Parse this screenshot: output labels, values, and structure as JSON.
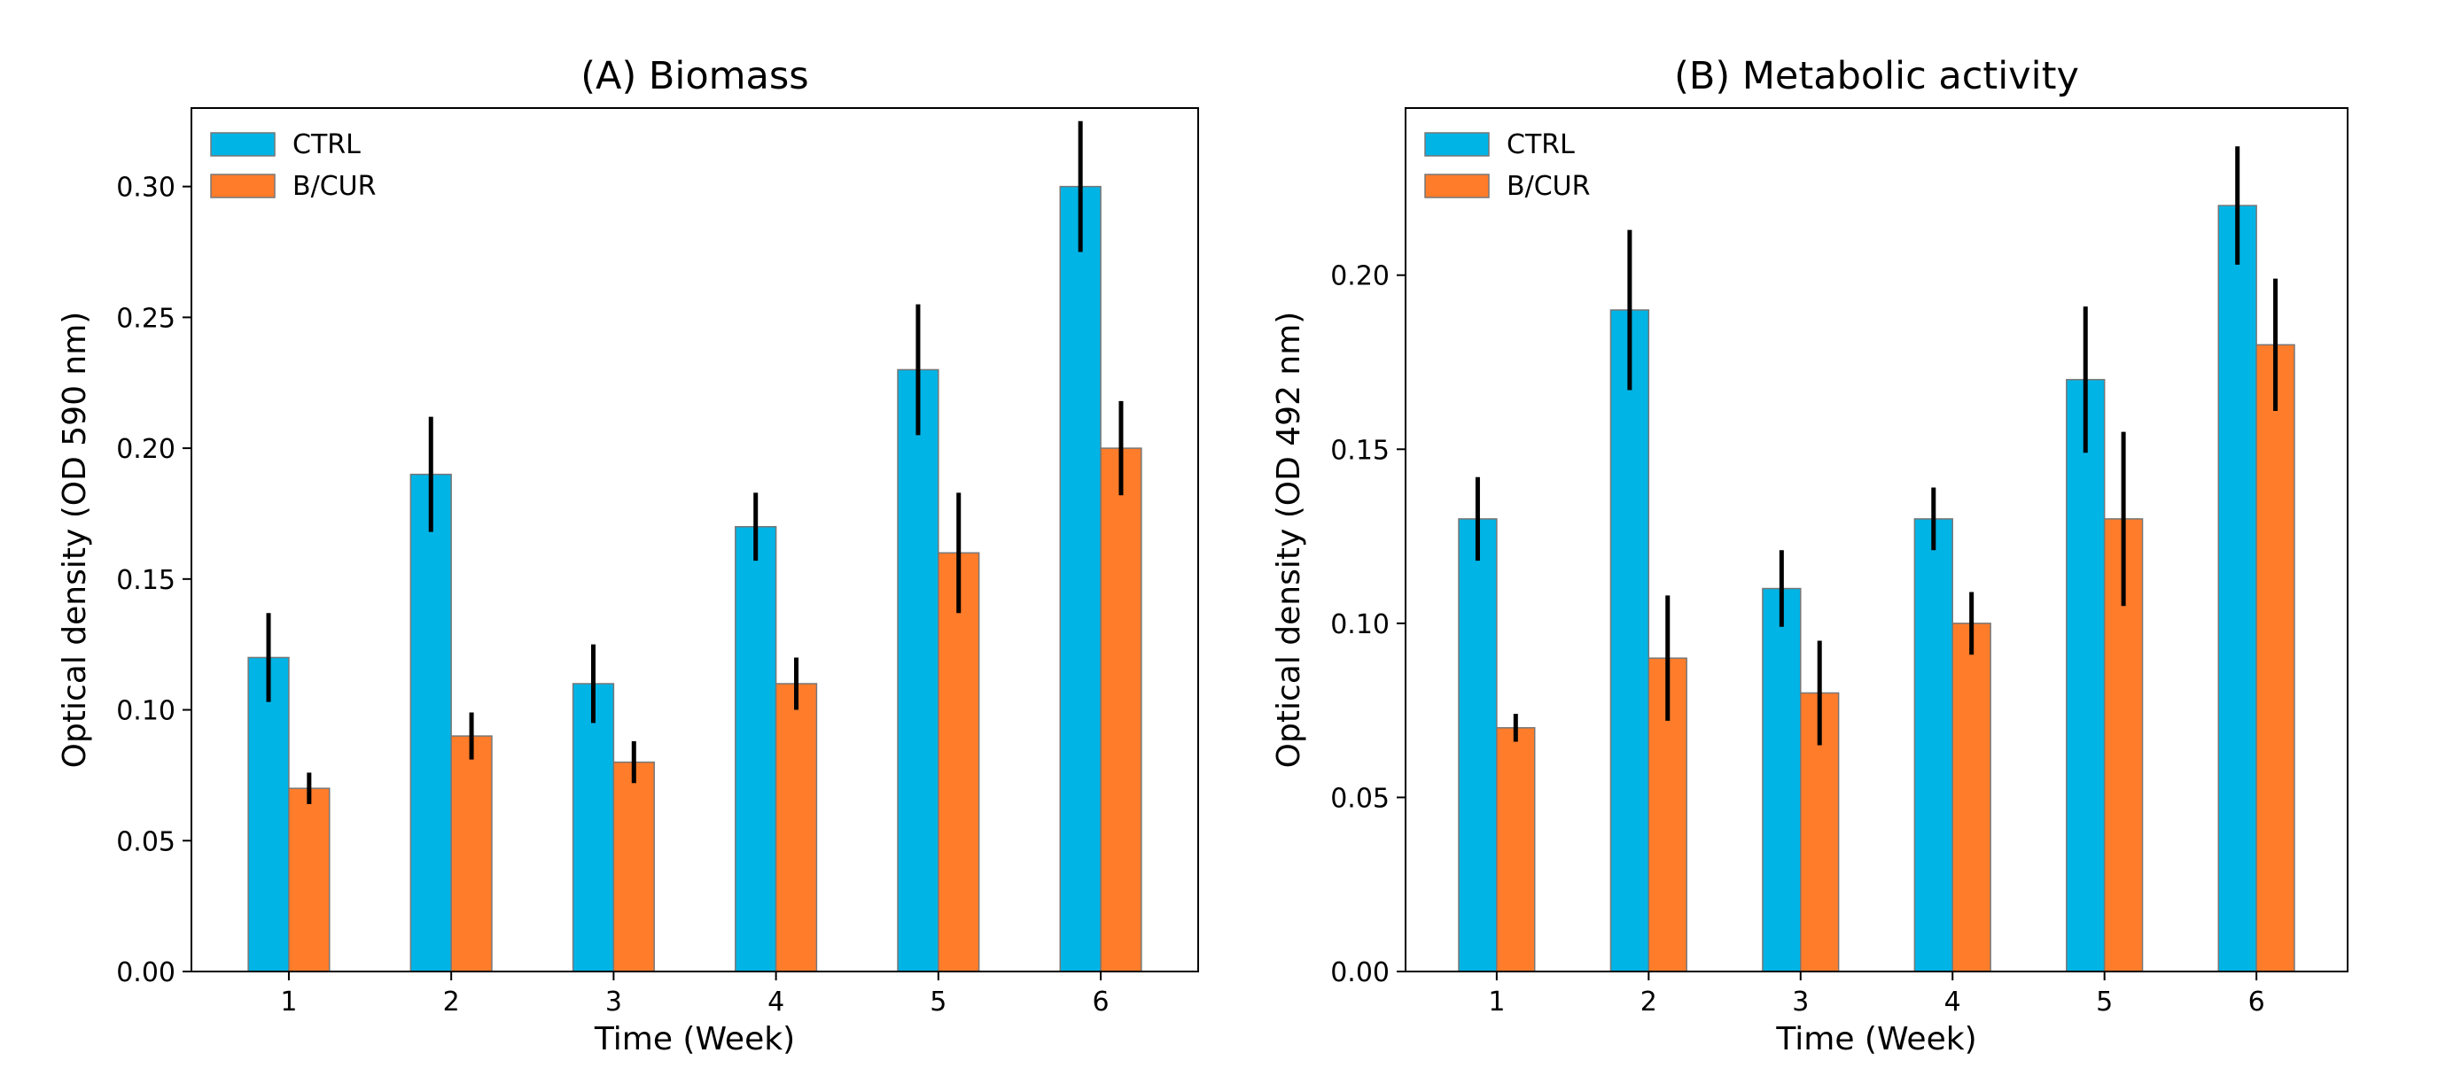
{
  "chart_data": [
    {
      "type": "bar",
      "title": "(A) Biomass",
      "xlabel": "Time (Week)",
      "ylabel": "Optical density (OD 590 nm)",
      "categories": [
        "1",
        "2",
        "3",
        "4",
        "5",
        "6"
      ],
      "ylim": [
        0,
        0.33
      ],
      "yticks": [
        "0.00",
        "0.05",
        "0.10",
        "0.15",
        "0.20",
        "0.25",
        "0.30"
      ],
      "legend_position": "top-left",
      "series": [
        {
          "name": "CTRL",
          "color": "#00b4e6",
          "values": [
            0.12,
            0.19,
            0.11,
            0.17,
            0.23,
            0.3
          ],
          "errors": [
            0.017,
            0.022,
            0.015,
            0.013,
            0.025,
            0.025
          ]
        },
        {
          "name": "B/CUR",
          "color": "#ff7c2a",
          "values": [
            0.07,
            0.09,
            0.08,
            0.11,
            0.16,
            0.2
          ],
          "errors": [
            0.006,
            0.009,
            0.008,
            0.01,
            0.023,
            0.018
          ]
        }
      ]
    },
    {
      "type": "bar",
      "title": "(B) Metabolic activity",
      "xlabel": "Time (Week)",
      "ylabel": "Optical density (OD 492 nm)",
      "categories": [
        "1",
        "2",
        "3",
        "4",
        "5",
        "6"
      ],
      "ylim": [
        0,
        0.248
      ],
      "yticks": [
        "0.00",
        "0.05",
        "0.10",
        "0.15",
        "0.20"
      ],
      "legend_position": "top-left",
      "series": [
        {
          "name": "CTRL",
          "color": "#00b4e6",
          "values": [
            0.13,
            0.19,
            0.11,
            0.13,
            0.17,
            0.22
          ],
          "errors": [
            0.012,
            0.023,
            0.011,
            0.009,
            0.021,
            0.017
          ]
        },
        {
          "name": "B/CUR",
          "color": "#ff7c2a",
          "values": [
            0.07,
            0.09,
            0.08,
            0.1,
            0.13,
            0.18
          ],
          "errors": [
            0.004,
            0.018,
            0.015,
            0.009,
            0.025,
            0.019
          ]
        }
      ]
    }
  ]
}
